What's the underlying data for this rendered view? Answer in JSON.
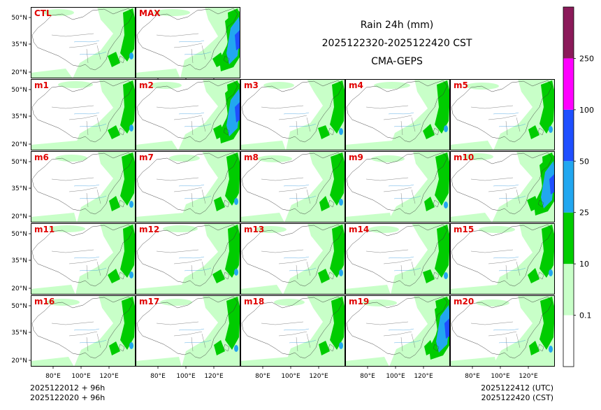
{
  "chart_data": {
    "type": "heatmap",
    "title": "Rain 24h (mm)",
    "subtitle": "2025122320-2025122420 CST",
    "model": "CMA-GEPS",
    "panels": [
      "CTL",
      "MAX",
      "m1",
      "m2",
      "m3",
      "m4",
      "m5",
      "m6",
      "m7",
      "m8",
      "m9",
      "m10",
      "m11",
      "m12",
      "m13",
      "m14",
      "m15",
      "m16",
      "m17",
      "m18",
      "m19",
      "m20"
    ],
    "lat_ticks": [
      "50°N",
      "35°N",
      "20°N"
    ],
    "lon_ticks": [
      "80°E",
      "100°E",
      "120°E"
    ],
    "colorbar": {
      "levels": [
        "0.1",
        "10",
        "25",
        "50",
        "100",
        "250"
      ],
      "colors": [
        "#ffffff",
        "#c8ffc8",
        "#00cc00",
        "#22a7f0",
        "#1f4fff",
        "#ff00ff",
        "#8b1a5a"
      ]
    },
    "init_utc": "2025122012 + 96h",
    "init_cst": "2025122020 + 96h",
    "valid_utc": "2025122412 (UTC)",
    "valid_cst": "2025122420 (CST)",
    "panel_label_color": "#e00000"
  }
}
